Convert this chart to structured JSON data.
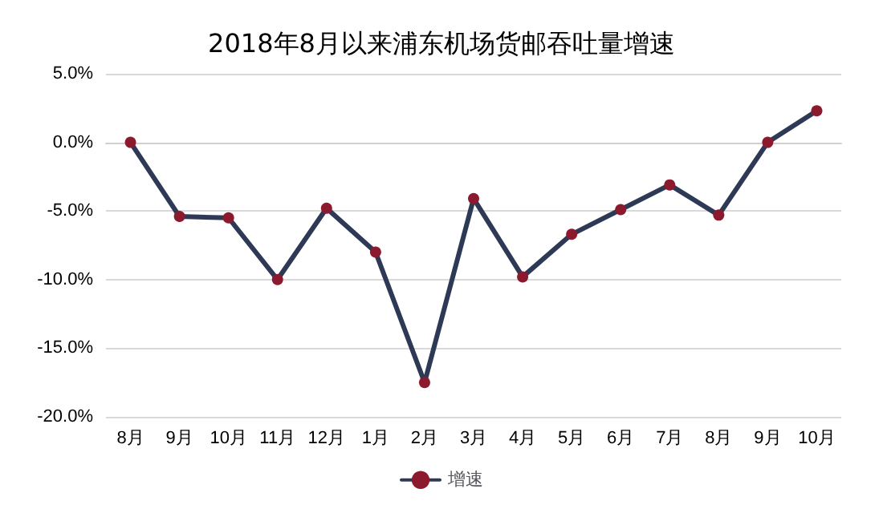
{
  "chart_data": {
    "type": "line",
    "title": "2018年8月以来浦东机场货邮吞吐量增速",
    "categories": [
      "8月",
      "9月",
      "10月",
      "11月",
      "12月",
      "1月",
      "2月",
      "3月",
      "4月",
      "5月",
      "6月",
      "7月",
      "8月",
      "9月",
      "10月"
    ],
    "series": [
      {
        "name": "增速",
        "color": "#2e3a55",
        "values": [
          0.0,
          -5.4,
          -5.5,
          -10.0,
          -4.8,
          -8.0,
          -17.5,
          -4.1,
          -9.8,
          -6.7,
          -4.9,
          -3.1,
          -5.3,
          0.0,
          2.3
        ]
      }
    ],
    "ylim": [
      -20,
      5
    ],
    "yticks": [
      {
        "value": -20,
        "label": "-20.0%"
      },
      {
        "value": -15,
        "label": "-15.0%"
      },
      {
        "value": -10,
        "label": "-10.0%"
      },
      {
        "value": -5,
        "label": "-5.0%"
      },
      {
        "value": 0,
        "label": "0.0%"
      },
      {
        "value": 5,
        "label": "5.0%"
      }
    ],
    "grid": "y",
    "legend": "bottom",
    "marker": "circle",
    "line_style": "solid"
  }
}
